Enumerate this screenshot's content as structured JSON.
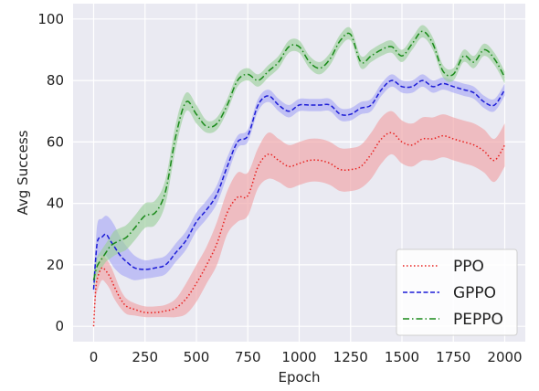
{
  "chart_data": {
    "type": "line",
    "title": "",
    "xlabel": "Epoch",
    "ylabel": "Avg Success",
    "xlim": [
      -100,
      2100
    ],
    "ylim": [
      -5,
      105
    ],
    "x_ticks": [
      0,
      250,
      500,
      750,
      1000,
      1250,
      1500,
      1750,
      2000
    ],
    "y_ticks": [
      0,
      20,
      40,
      60,
      80,
      100
    ],
    "grid": true,
    "legend_position": "lower-right",
    "series": [
      {
        "name": "PPO",
        "color": "#e8211f",
        "band_color": "#f0a3a6",
        "dash": "dotted",
        "x": [
          0,
          10,
          20,
          40,
          60,
          80,
          100,
          130,
          160,
          200,
          250,
          300,
          350,
          400,
          450,
          500,
          550,
          600,
          650,
          700,
          750,
          800,
          850,
          900,
          950,
          1000,
          1050,
          1100,
          1150,
          1200,
          1250,
          1300,
          1350,
          1400,
          1450,
          1500,
          1550,
          1600,
          1650,
          1700,
          1750,
          1800,
          1850,
          1900,
          1950,
          2000
        ],
        "y": [
          0,
          12,
          16,
          19,
          18,
          16,
          13,
          9,
          6.5,
          5.5,
          4.5,
          4.5,
          5,
          6,
          9,
          14,
          20,
          27,
          37,
          42,
          42.5,
          52,
          56,
          54,
          52,
          53,
          54,
          54,
          53,
          51,
          51,
          52,
          56,
          61,
          63,
          60,
          59,
          61,
          61,
          62,
          61,
          60,
          59,
          57,
          54,
          59
        ],
        "lower": [
          0,
          9,
          12,
          15,
          14,
          12,
          9,
          6,
          4,
          3.5,
          3,
          3,
          3,
          3,
          4,
          8,
          14,
          20,
          30,
          34,
          36,
          45,
          48,
          47,
          45,
          46,
          47,
          47,
          46,
          44,
          44,
          45,
          48,
          53,
          56,
          53,
          52,
          54,
          54,
          55,
          54,
          53,
          52,
          50,
          47,
          52
        ],
        "upper": [
          2,
          15,
          20,
          23,
          22,
          20,
          17,
          12,
          9,
          7.5,
          6.5,
          6.5,
          7,
          9,
          14,
          20,
          26,
          34,
          44,
          50,
          50,
          58,
          63,
          61,
          59,
          60,
          61,
          61,
          60,
          58,
          58,
          59,
          63,
          68,
          70,
          67,
          66,
          68,
          68,
          69,
          68,
          67,
          66,
          64,
          61,
          66
        ]
      },
      {
        "name": "GPPO",
        "color": "#1b1bd6",
        "band_color": "#a9a9f5",
        "dash": "dashed",
        "x": [
          0,
          10,
          20,
          40,
          60,
          80,
          100,
          130,
          160,
          200,
          250,
          300,
          350,
          400,
          450,
          500,
          550,
          600,
          650,
          700,
          750,
          800,
          850,
          900,
          950,
          1000,
          1050,
          1100,
          1150,
          1200,
          1250,
          1300,
          1350,
          1400,
          1450,
          1500,
          1550,
          1600,
          1650,
          1700,
          1750,
          1800,
          1850,
          1900,
          1950,
          2000
        ],
        "y": [
          12,
          22,
          28,
          29,
          30,
          28,
          26,
          23,
          21,
          19,
          18.5,
          19,
          20,
          24,
          28,
          34,
          38,
          43,
          52,
          60,
          62,
          72,
          75,
          72,
          70,
          72,
          72,
          72,
          72,
          69,
          69,
          71,
          72,
          77,
          80,
          78,
          78,
          80,
          78,
          79,
          78,
          77,
          76,
          73,
          72,
          77
        ],
        "lower": [
          9,
          17,
          22,
          23,
          23,
          21,
          19,
          17,
          16,
          15,
          15.5,
          16,
          17,
          21,
          25,
          31,
          35,
          40,
          49,
          58,
          60,
          70,
          73,
          70,
          68,
          70,
          70,
          70,
          70,
          67,
          67,
          69,
          70,
          75,
          78,
          76,
          76,
          78,
          76,
          77,
          76,
          75,
          74,
          71,
          70,
          75
        ],
        "upper": [
          15,
          27,
          34,
          35,
          36,
          35,
          33,
          29,
          26,
          23,
          21.5,
          22,
          23,
          27,
          31,
          37,
          41,
          46,
          55,
          62,
          64,
          74,
          77,
          74,
          72,
          74,
          74,
          74,
          74,
          71,
          71,
          73,
          74,
          79,
          82,
          80,
          80,
          82,
          80,
          81,
          80,
          79,
          78,
          75,
          74,
          79
        ]
      },
      {
        "name": "PEPPO",
        "color": "#1a8a1a",
        "band_color": "#9ccf9c",
        "dash": "dashdot",
        "x": [
          0,
          10,
          20,
          40,
          60,
          80,
          100,
          130,
          160,
          200,
          250,
          300,
          350,
          400,
          450,
          500,
          550,
          600,
          650,
          700,
          750,
          800,
          850,
          900,
          950,
          1000,
          1050,
          1100,
          1150,
          1200,
          1250,
          1300,
          1350,
          1400,
          1450,
          1500,
          1550,
          1600,
          1650,
          1700,
          1750,
          1800,
          1850,
          1900,
          1950,
          2000
        ],
        "y": [
          15,
          18,
          20,
          22,
          24,
          26,
          27,
          28,
          29,
          32,
          36,
          37,
          44,
          62,
          73,
          69,
          65,
          66,
          72,
          80,
          82,
          80,
          83,
          86,
          91,
          91,
          86,
          84,
          87,
          93,
          95,
          86,
          88,
          90,
          91,
          88,
          92,
          96,
          92,
          83,
          82,
          88,
          86,
          90,
          87,
          81
        ],
        "lower": [
          12,
          15,
          17,
          19,
          21,
          22,
          23,
          24,
          25,
          28,
          32,
          33,
          40,
          58,
          70,
          66,
          63,
          64,
          70,
          78,
          80,
          78,
          81,
          84,
          89,
          89,
          84,
          82,
          85,
          91,
          93,
          84,
          86,
          88,
          89,
          86,
          90,
          94,
          90,
          81,
          80,
          86,
          84,
          88,
          85,
          79
        ],
        "upper": [
          18,
          21,
          23,
          25,
          27,
          29,
          31,
          32,
          33,
          36,
          40,
          41,
          48,
          66,
          76,
          72,
          67,
          68,
          74,
          82,
          84,
          82,
          85,
          88,
          93,
          93,
          88,
          86,
          89,
          95,
          97,
          88,
          90,
          92,
          93,
          90,
          94,
          98,
          94,
          85,
          84,
          90,
          88,
          92,
          89,
          83
        ]
      }
    ]
  }
}
